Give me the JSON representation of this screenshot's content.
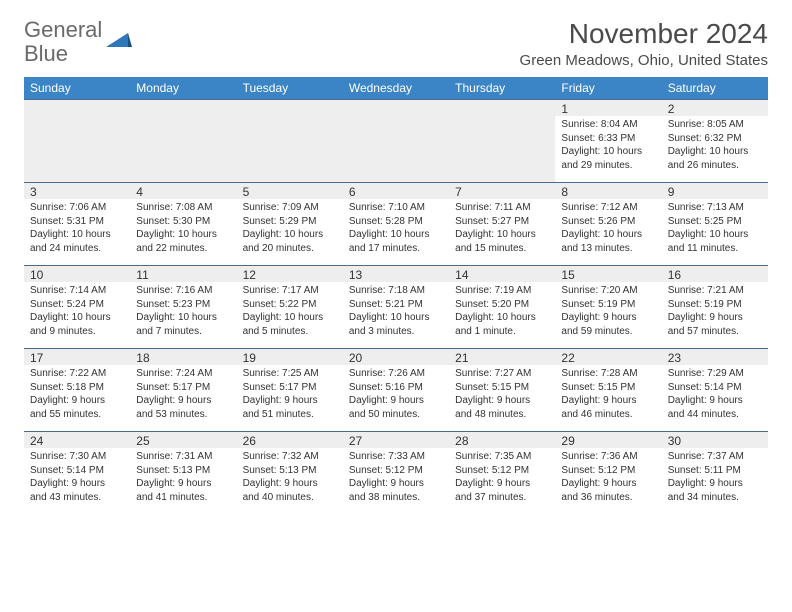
{
  "logo": {
    "text1": "General",
    "text2": "Blue"
  },
  "title": "November 2024",
  "location": "Green Meadows, Ohio, United States",
  "colors": {
    "header_bg": "#3b85c6",
    "header_text": "#ffffff",
    "stripe_bg": "#eeeeee",
    "border": "#4a6a8a",
    "text": "#333333",
    "logo_gray": "#6a6a6a",
    "logo_blue": "#2f77bb"
  },
  "day_names": [
    "Sunday",
    "Monday",
    "Tuesday",
    "Wednesday",
    "Thursday",
    "Friday",
    "Saturday"
  ],
  "weeks": [
    [
      null,
      null,
      null,
      null,
      null,
      {
        "n": "1",
        "sr": "8:04 AM",
        "ss": "6:33 PM",
        "dl": "10 hours and 29 minutes."
      },
      {
        "n": "2",
        "sr": "8:05 AM",
        "ss": "6:32 PM",
        "dl": "10 hours and 26 minutes."
      }
    ],
    [
      {
        "n": "3",
        "sr": "7:06 AM",
        "ss": "5:31 PM",
        "dl": "10 hours and 24 minutes."
      },
      {
        "n": "4",
        "sr": "7:08 AM",
        "ss": "5:30 PM",
        "dl": "10 hours and 22 minutes."
      },
      {
        "n": "5",
        "sr": "7:09 AM",
        "ss": "5:29 PM",
        "dl": "10 hours and 20 minutes."
      },
      {
        "n": "6",
        "sr": "7:10 AM",
        "ss": "5:28 PM",
        "dl": "10 hours and 17 minutes."
      },
      {
        "n": "7",
        "sr": "7:11 AM",
        "ss": "5:27 PM",
        "dl": "10 hours and 15 minutes."
      },
      {
        "n": "8",
        "sr": "7:12 AM",
        "ss": "5:26 PM",
        "dl": "10 hours and 13 minutes."
      },
      {
        "n": "9",
        "sr": "7:13 AM",
        "ss": "5:25 PM",
        "dl": "10 hours and 11 minutes."
      }
    ],
    [
      {
        "n": "10",
        "sr": "7:14 AM",
        "ss": "5:24 PM",
        "dl": "10 hours and 9 minutes."
      },
      {
        "n": "11",
        "sr": "7:16 AM",
        "ss": "5:23 PM",
        "dl": "10 hours and 7 minutes."
      },
      {
        "n": "12",
        "sr": "7:17 AM",
        "ss": "5:22 PM",
        "dl": "10 hours and 5 minutes."
      },
      {
        "n": "13",
        "sr": "7:18 AM",
        "ss": "5:21 PM",
        "dl": "10 hours and 3 minutes."
      },
      {
        "n": "14",
        "sr": "7:19 AM",
        "ss": "5:20 PM",
        "dl": "10 hours and 1 minute."
      },
      {
        "n": "15",
        "sr": "7:20 AM",
        "ss": "5:19 PM",
        "dl": "9 hours and 59 minutes."
      },
      {
        "n": "16",
        "sr": "7:21 AM",
        "ss": "5:19 PM",
        "dl": "9 hours and 57 minutes."
      }
    ],
    [
      {
        "n": "17",
        "sr": "7:22 AM",
        "ss": "5:18 PM",
        "dl": "9 hours and 55 minutes."
      },
      {
        "n": "18",
        "sr": "7:24 AM",
        "ss": "5:17 PM",
        "dl": "9 hours and 53 minutes."
      },
      {
        "n": "19",
        "sr": "7:25 AM",
        "ss": "5:17 PM",
        "dl": "9 hours and 51 minutes."
      },
      {
        "n": "20",
        "sr": "7:26 AM",
        "ss": "5:16 PM",
        "dl": "9 hours and 50 minutes."
      },
      {
        "n": "21",
        "sr": "7:27 AM",
        "ss": "5:15 PM",
        "dl": "9 hours and 48 minutes."
      },
      {
        "n": "22",
        "sr": "7:28 AM",
        "ss": "5:15 PM",
        "dl": "9 hours and 46 minutes."
      },
      {
        "n": "23",
        "sr": "7:29 AM",
        "ss": "5:14 PM",
        "dl": "9 hours and 44 minutes."
      }
    ],
    [
      {
        "n": "24",
        "sr": "7:30 AM",
        "ss": "5:14 PM",
        "dl": "9 hours and 43 minutes."
      },
      {
        "n": "25",
        "sr": "7:31 AM",
        "ss": "5:13 PM",
        "dl": "9 hours and 41 minutes."
      },
      {
        "n": "26",
        "sr": "7:32 AM",
        "ss": "5:13 PM",
        "dl": "9 hours and 40 minutes."
      },
      {
        "n": "27",
        "sr": "7:33 AM",
        "ss": "5:12 PM",
        "dl": "9 hours and 38 minutes."
      },
      {
        "n": "28",
        "sr": "7:35 AM",
        "ss": "5:12 PM",
        "dl": "9 hours and 37 minutes."
      },
      {
        "n": "29",
        "sr": "7:36 AM",
        "ss": "5:12 PM",
        "dl": "9 hours and 36 minutes."
      },
      {
        "n": "30",
        "sr": "7:37 AM",
        "ss": "5:11 PM",
        "dl": "9 hours and 34 minutes."
      }
    ]
  ]
}
